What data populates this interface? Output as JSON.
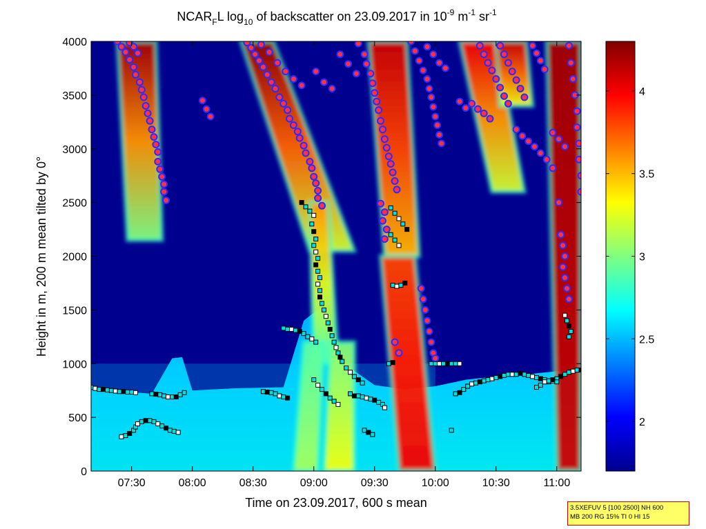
{
  "chart_data": {
    "type": "heatmap",
    "title": {
      "prefix": "NCAR",
      "subscript": "F",
      "mid": "L log",
      "log_base": "10",
      "suffix": " of backscatter on 23.09.2017 in 10",
      "exp1": "-9",
      "unit1": " m",
      "exp2": "-1",
      "unit2": " sr",
      "exp3": "-1"
    },
    "xlabel": "Time on 23.09.2017, 600 s mean",
    "ylabel": "Height in m, 200 m mean tilted by 0°",
    "xlim": [
      "07:10",
      "11:12"
    ],
    "ylim": [
      0,
      4000
    ],
    "xticks": [
      "07:30",
      "08:00",
      "08:30",
      "09:00",
      "09:30",
      "10:00",
      "10:30",
      "11:00"
    ],
    "xtick_minutes": [
      450,
      480,
      510,
      540,
      570,
      600,
      630,
      660
    ],
    "yticks": [
      0,
      500,
      1000,
      1500,
      2000,
      2500,
      3000,
      3500,
      4000
    ],
    "colorbar": {
      "colormap": "jet",
      "range": [
        1.7,
        4.3
      ],
      "ticks": [
        "2",
        "2.5",
        "3",
        "3.5",
        "4"
      ],
      "tick_values": [
        2,
        2.5,
        3,
        3.5,
        4
      ]
    },
    "background_color": "#00008f",
    "grid": false,
    "annotations": [
      "3.5XEFUV 5 [100 2500] NH 600",
      "MB 200 RG 15% TI 0 HI 15"
    ],
    "plumes": [
      {
        "t0": 443,
        "t1": 462,
        "t2": 448,
        "t3": 465,
        "h_top": 4000,
        "h_bottom": 2150,
        "v_top": 4.2,
        "v_bot": 3.0
      },
      {
        "t0": 504,
        "t1": 520,
        "t2": 538,
        "t3": 560,
        "h_top": 4000,
        "h_bottom": 2050,
        "v_top": 4.25,
        "v_bot": 3.2
      },
      {
        "t0": 538,
        "t1": 547,
        "t2": 540,
        "t3": 552,
        "h_top": 2500,
        "h_bottom": 1000,
        "v_top": 3.6,
        "v_bot": 2.9
      },
      {
        "t0": 567,
        "t1": 586,
        "t2": 575,
        "t3": 592,
        "h_top": 4000,
        "h_bottom": 2000,
        "v_top": 4.1,
        "v_bot": 3.5
      },
      {
        "t0": 573,
        "t1": 590,
        "t2": 582,
        "t3": 600,
        "h_top": 2000,
        "h_bottom": 0,
        "v_top": 3.8,
        "v_bot": 4.0
      },
      {
        "t0": 612,
        "t1": 630,
        "t2": 628,
        "t3": 644,
        "h_top": 4000,
        "h_bottom": 2600,
        "v_top": 4.0,
        "v_bot": 3.2
      },
      {
        "t0": 630,
        "t1": 645,
        "t2": 632,
        "t3": 648,
        "h_top": 4000,
        "h_bottom": 3400,
        "v_top": 4.1,
        "v_bot": 3.3
      },
      {
        "t0": 655,
        "t1": 672,
        "t2": 660,
        "t3": 672,
        "h_top": 4000,
        "h_bottom": 0,
        "v_top": 4.2,
        "v_bot": 4.1
      },
      {
        "t0": 548,
        "t1": 560,
        "t2": 545,
        "t3": 560,
        "h_top": 1200,
        "h_bottom": 0,
        "v_top": 3.0,
        "v_bot": 3.3
      },
      {
        "t0": 535,
        "t1": 545,
        "t2": 530,
        "t3": 542,
        "h_top": 1200,
        "h_bottom": 0,
        "v_top": 2.9,
        "v_bot": 3.1
      }
    ],
    "boundary_layer_top": [
      [
        430,
        780
      ],
      [
        445,
        740
      ],
      [
        460,
        720
      ],
      [
        470,
        1050
      ],
      [
        475,
        1060
      ],
      [
        480,
        750
      ],
      [
        500,
        770
      ],
      [
        525,
        780
      ],
      [
        535,
        1400
      ],
      [
        545,
        1550
      ],
      [
        555,
        1000
      ],
      [
        570,
        800
      ],
      [
        585,
        760
      ],
      [
        600,
        790
      ],
      [
        615,
        850
      ],
      [
        630,
        880
      ],
      [
        645,
        900
      ],
      [
        660,
        930
      ],
      [
        672,
        950
      ]
    ],
    "aerosol_markers": [
      [
        443,
        4000
      ],
      [
        445,
        3950
      ],
      [
        447,
        3900
      ],
      [
        449,
        3830
      ],
      [
        451,
        3760
      ],
      [
        452,
        3690
      ],
      [
        454,
        3620
      ],
      [
        455,
        3550
      ],
      [
        456,
        3480
      ],
      [
        457,
        3400
      ],
      [
        458,
        3330
      ],
      [
        459,
        3260
      ],
      [
        460,
        3180
      ],
      [
        461,
        3110
      ],
      [
        462,
        3040
      ],
      [
        463,
        2970
      ],
      [
        463,
        2880
      ],
      [
        464,
        2810
      ],
      [
        465,
        2740
      ],
      [
        466,
        2670
      ],
      [
        466,
        2600
      ],
      [
        467,
        2520
      ],
      [
        449,
        3990
      ],
      [
        451,
        3950
      ],
      [
        453,
        3890
      ],
      [
        485,
        3450
      ],
      [
        487,
        3370
      ],
      [
        489,
        3300
      ],
      [
        507,
        3990
      ],
      [
        509,
        3940
      ],
      [
        511,
        3880
      ],
      [
        513,
        3820
      ],
      [
        515,
        3760
      ],
      [
        517,
        3690
      ],
      [
        519,
        3620
      ],
      [
        521,
        3560
      ],
      [
        523,
        3480
      ],
      [
        525,
        3420
      ],
      [
        527,
        3360
      ],
      [
        528,
        3280
      ],
      [
        530,
        3220
      ],
      [
        532,
        3160
      ],
      [
        533,
        3100
      ],
      [
        535,
        3030
      ],
      [
        536,
        2960
      ],
      [
        538,
        2880
      ],
      [
        539,
        2820
      ],
      [
        540,
        2740
      ],
      [
        541,
        2680
      ],
      [
        542,
        2610
      ],
      [
        514,
        3970
      ],
      [
        518,
        3900
      ],
      [
        522,
        3800
      ],
      [
        526,
        3720
      ],
      [
        530,
        3650
      ],
      [
        534,
        3590
      ],
      [
        541,
        3720
      ],
      [
        545,
        3620
      ],
      [
        549,
        3560
      ],
      [
        553,
        3880
      ],
      [
        557,
        3790
      ],
      [
        561,
        3700
      ],
      [
        542,
        2540
      ],
      [
        544,
        2470
      ],
      [
        562,
        3980
      ],
      [
        565,
        3880
      ],
      [
        566,
        3790
      ],
      [
        568,
        3700
      ],
      [
        569,
        3610
      ],
      [
        570,
        3520
      ],
      [
        571,
        3440
      ],
      [
        572,
        3360
      ],
      [
        573,
        3260
      ],
      [
        574,
        3180
      ],
      [
        575,
        3090
      ],
      [
        576,
        3010
      ],
      [
        577,
        2930
      ],
      [
        578,
        2860
      ],
      [
        579,
        2780
      ],
      [
        580,
        2700
      ],
      [
        581,
        2620
      ],
      [
        573,
        2490
      ],
      [
        575,
        2410
      ],
      [
        574,
        2330
      ],
      [
        576,
        2250
      ],
      [
        575,
        2160
      ],
      [
        588,
        4000
      ],
      [
        590,
        3910
      ],
      [
        592,
        3820
      ],
      [
        594,
        3730
      ],
      [
        596,
        3650
      ],
      [
        597,
        3560
      ],
      [
        598,
        3480
      ],
      [
        599,
        3390
      ],
      [
        600,
        3300
      ],
      [
        601,
        3220
      ],
      [
        602,
        3130
      ],
      [
        603,
        3050
      ],
      [
        596,
        3950
      ],
      [
        599,
        3880
      ],
      [
        602,
        3800
      ],
      [
        605,
        3750
      ],
      [
        612,
        3440
      ],
      [
        615,
        3380
      ],
      [
        618,
        3420
      ],
      [
        621,
        3370
      ],
      [
        624,
        3330
      ],
      [
        627,
        3280
      ],
      [
        632,
        3960
      ],
      [
        634,
        3880
      ],
      [
        636,
        3800
      ],
      [
        638,
        3720
      ],
      [
        640,
        3640
      ],
      [
        642,
        3560
      ],
      [
        644,
        3480
      ],
      [
        640,
        3180
      ],
      [
        643,
        3120
      ],
      [
        646,
        3070
      ],
      [
        649,
        3020
      ],
      [
        652,
        2960
      ],
      [
        655,
        2900
      ],
      [
        658,
        2820
      ],
      [
        648,
        3960
      ],
      [
        650,
        3890
      ],
      [
        652,
        3820
      ],
      [
        654,
        3740
      ],
      [
        658,
        3150
      ],
      [
        661,
        3090
      ],
      [
        664,
        3020
      ],
      [
        622,
        3960
      ],
      [
        624,
        3880
      ],
      [
        626,
        3800
      ],
      [
        628,
        3730
      ],
      [
        630,
        3650
      ],
      [
        632,
        3570
      ],
      [
        634,
        3490
      ],
      [
        636,
        3420
      ],
      [
        666,
        3960
      ],
      [
        667,
        3800
      ],
      [
        668,
        3650
      ],
      [
        669,
        3500
      ],
      [
        670,
        3350
      ],
      [
        670,
        3200
      ],
      [
        671,
        3050
      ],
      [
        671,
        2900
      ],
      [
        672,
        2750
      ],
      [
        672,
        2600
      ],
      [
        661,
        2500
      ],
      [
        662,
        2200
      ],
      [
        663,
        2100
      ],
      [
        664,
        2000
      ],
      [
        663,
        1900
      ],
      [
        664,
        1800
      ],
      [
        665,
        1700
      ],
      [
        666,
        1600
      ],
      [
        593,
        1700
      ],
      [
        594,
        1600
      ],
      [
        595,
        1500
      ],
      [
        596,
        1400
      ],
      [
        597,
        1300
      ],
      [
        598,
        1200
      ],
      [
        599,
        1100
      ],
      [
        600,
        1050
      ],
      [
        580,
        1200
      ],
      [
        582,
        1100
      ]
    ],
    "cloud_markers": [
      [
        430,
        780
      ],
      [
        432,
        770
      ],
      [
        434,
        760
      ],
      [
        436,
        760
      ],
      [
        438,
        755
      ],
      [
        440,
        750
      ],
      [
        442,
        745
      ],
      [
        444,
        740
      ],
      [
        446,
        740
      ],
      [
        448,
        735
      ],
      [
        450,
        735
      ],
      [
        452,
        730
      ],
      [
        460,
        720
      ],
      [
        462,
        715
      ],
      [
        464,
        710
      ],
      [
        466,
        700
      ],
      [
        468,
        690
      ],
      [
        470,
        690
      ],
      [
        472,
        690
      ],
      [
        474,
        710
      ],
      [
        476,
        730
      ],
      [
        445,
        320
      ],
      [
        447,
        330
      ],
      [
        449,
        350
      ],
      [
        451,
        380
      ],
      [
        452,
        410
      ],
      [
        453,
        440
      ],
      [
        455,
        460
      ],
      [
        457,
        470
      ],
      [
        459,
        470
      ],
      [
        461,
        460
      ],
      [
        463,
        440
      ],
      [
        465,
        420
      ],
      [
        467,
        400
      ],
      [
        469,
        380
      ],
      [
        471,
        370
      ],
      [
        473,
        360
      ],
      [
        515,
        740
      ],
      [
        517,
        735
      ],
      [
        519,
        730
      ],
      [
        521,
        720
      ],
      [
        523,
        700
      ],
      [
        525,
        690
      ],
      [
        527,
        680
      ],
      [
        525,
        1330
      ],
      [
        527,
        1320
      ],
      [
        529,
        1320
      ],
      [
        531,
        1310
      ],
      [
        533,
        1300
      ],
      [
        535,
        1280
      ],
      [
        537,
        1250
      ],
      [
        539,
        1230
      ],
      [
        541,
        1200
      ],
      [
        534,
        2500
      ],
      [
        536,
        2460
      ],
      [
        538,
        2420
      ],
      [
        540,
        2380
      ],
      [
        539,
        2300
      ],
      [
        540,
        2230
      ],
      [
        541,
        2160
      ],
      [
        540,
        2100
      ],
      [
        541,
        2040
      ],
      [
        542,
        1980
      ],
      [
        541,
        1920
      ],
      [
        542,
        1860
      ],
      [
        543,
        1800
      ],
      [
        542,
        1740
      ],
      [
        543,
        1680
      ],
      [
        543,
        1620
      ],
      [
        544,
        1560
      ],
      [
        545,
        1500
      ],
      [
        546,
        1440
      ],
      [
        547,
        1380
      ],
      [
        548,
        1320
      ],
      [
        549,
        1260
      ],
      [
        550,
        1200
      ],
      [
        551,
        1150
      ],
      [
        552,
        1100
      ],
      [
        553,
        1060
      ],
      [
        554,
        1020
      ],
      [
        556,
        960
      ],
      [
        558,
        920
      ],
      [
        560,
        880
      ],
      [
        562,
        850
      ],
      [
        564,
        820
      ],
      [
        540,
        850
      ],
      [
        542,
        800
      ],
      [
        544,
        760
      ],
      [
        546,
        720
      ],
      [
        548,
        680
      ],
      [
        550,
        650
      ],
      [
        552,
        620
      ],
      [
        558,
        720
      ],
      [
        560,
        700
      ],
      [
        562,
        700
      ],
      [
        564,
        690
      ],
      [
        566,
        680
      ],
      [
        568,
        670
      ],
      [
        570,
        660
      ],
      [
        572,
        640
      ],
      [
        574,
        620
      ],
      [
        575,
        590
      ],
      [
        565,
        380
      ],
      [
        567,
        360
      ],
      [
        569,
        340
      ],
      [
        579,
        1730
      ],
      [
        581,
        1720
      ],
      [
        583,
        1730
      ],
      [
        585,
        1750
      ],
      [
        578,
        2450
      ],
      [
        580,
        2400
      ],
      [
        582,
        2350
      ],
      [
        584,
        2300
      ],
      [
        586,
        2250
      ],
      [
        578,
        2200
      ],
      [
        580,
        2150
      ],
      [
        582,
        2100
      ],
      [
        577,
        1000
      ],
      [
        579,
        1010
      ],
      [
        598,
        1000
      ],
      [
        600,
        1000
      ],
      [
        602,
        1000
      ],
      [
        604,
        1000
      ],
      [
        606,
        1000
      ],
      [
        608,
        1000
      ],
      [
        610,
        1000
      ],
      [
        612,
        1000
      ],
      [
        610,
        720
      ],
      [
        612,
        730
      ],
      [
        614,
        760
      ],
      [
        616,
        790
      ],
      [
        618,
        810
      ],
      [
        620,
        820
      ],
      [
        622,
        830
      ],
      [
        624,
        840
      ],
      [
        626,
        850
      ],
      [
        628,
        860
      ],
      [
        630,
        870
      ],
      [
        632,
        880
      ],
      [
        634,
        890
      ],
      [
        636,
        900
      ],
      [
        638,
        900
      ],
      [
        640,
        900
      ],
      [
        642,
        910
      ],
      [
        644,
        900
      ],
      [
        646,
        890
      ],
      [
        648,
        880
      ],
      [
        650,
        870
      ],
      [
        652,
        860
      ],
      [
        654,
        850
      ],
      [
        656,
        830
      ],
      [
        658,
        840
      ],
      [
        660,
        860
      ],
      [
        662,
        880
      ],
      [
        664,
        900
      ],
      [
        666,
        920
      ],
      [
        668,
        930
      ],
      [
        670,
        940
      ],
      [
        672,
        940
      ],
      [
        650,
        780
      ],
      [
        652,
        800
      ],
      [
        654,
        830
      ],
      [
        656,
        840
      ],
      [
        658,
        850
      ],
      [
        660,
        830
      ],
      [
        608,
        380
      ],
      [
        664,
        1450
      ],
      [
        665,
        1400
      ],
      [
        666,
        1350
      ],
      [
        667,
        1300
      ],
      [
        666,
        1250
      ]
    ]
  }
}
